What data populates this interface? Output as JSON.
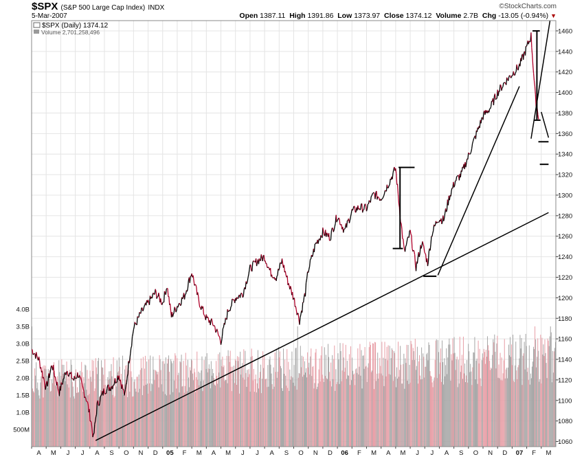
{
  "header": {
    "symbol": "$SPX",
    "name": "(S&P 500 Large Cap Index)",
    "exchange": "INDX",
    "date": "5-Mar-2007",
    "brand": "©StockCharts.com",
    "open_label": "Open",
    "open": "1387.11",
    "high_label": "High",
    "high": "1391.86",
    "low_label": "Low",
    "low": "1373.97",
    "close_label": "Close",
    "close": "1374.12",
    "volume_label": "Volume",
    "volume": "2.7B",
    "chg_label": "Chg",
    "chg": "-13.05 (-0.94%)",
    "chg_arrow": "▼"
  },
  "legend": {
    "price": "$SPX (Daily) 1374.12",
    "volume": "Volume 2,701,258,496"
  },
  "colors": {
    "up": "#000000",
    "down": "#b0002a",
    "volume_up": "#a8a8a8",
    "volume_down": "#e8a0a8",
    "grid": "#e4e4e4"
  },
  "chart_data": {
    "type": "line",
    "grid": true,
    "price_axis": {
      "position": "right",
      "range": [
        1055,
        1470
      ],
      "ticks": [
        1060,
        1080,
        1100,
        1120,
        1140,
        1160,
        1180,
        1200,
        1220,
        1240,
        1260,
        1280,
        1300,
        1320,
        1340,
        1360,
        1380,
        1400,
        1420,
        1440,
        1460
      ]
    },
    "volume_axis": {
      "position": "left",
      "range": [
        0,
        4.1
      ],
      "ticks": [
        {
          "v": 0.5,
          "label": "500M"
        },
        {
          "v": 1.0,
          "label": "1.0B"
        },
        {
          "v": 1.5,
          "label": "1.5B"
        },
        {
          "v": 2.0,
          "label": "2.0B"
        },
        {
          "v": 2.5,
          "label": "2.5B"
        },
        {
          "v": 3.0,
          "label": "3.0B"
        },
        {
          "v": 3.5,
          "label": "3.5B"
        },
        {
          "v": 4.0,
          "label": "4.0B"
        }
      ]
    },
    "x_axis": {
      "labels": [
        "A",
        "M",
        "J",
        "J",
        "A",
        "S",
        "O",
        "N",
        "D",
        "05",
        "F",
        "M",
        "A",
        "M",
        "J",
        "J",
        "A",
        "S",
        "O",
        "N",
        "D",
        "06",
        "F",
        "M",
        "A",
        "M",
        "J",
        "J",
        "A",
        "S",
        "O",
        "N",
        "D",
        "07",
        "F",
        "M"
      ],
      "bold": [
        "05",
        "06",
        "07"
      ]
    },
    "series": [
      {
        "points": [
          [
            0,
            1150
          ],
          [
            0.5,
            1140
          ],
          [
            1,
            1112
          ],
          [
            1.4,
            1135
          ],
          [
            1.9,
            1108
          ],
          [
            2.4,
            1130
          ],
          [
            2.9,
            1120
          ],
          [
            3.2,
            1126
          ],
          [
            3.5,
            1112
          ],
          [
            3.8,
            1100
          ],
          [
            4.1,
            1078
          ],
          [
            4.25,
            1063
          ],
          [
            4.5,
            1095
          ],
          [
            5,
            1110
          ],
          [
            5.5,
            1114
          ],
          [
            6,
            1125
          ],
          [
            6.4,
            1104
          ],
          [
            6.7,
            1140
          ],
          [
            7,
            1170
          ],
          [
            7.5,
            1185
          ],
          [
            8,
            1195
          ],
          [
            8.5,
            1205
          ],
          [
            9,
            1195
          ],
          [
            9.3,
            1212
          ],
          [
            9.6,
            1182
          ],
          [
            10,
            1192
          ],
          [
            10.5,
            1202
          ],
          [
            11,
            1225
          ],
          [
            11.5,
            1196
          ],
          [
            12,
            1180
          ],
          [
            12.5,
            1174
          ],
          [
            13,
            1158
          ],
          [
            13.5,
            1188
          ],
          [
            14,
            1200
          ],
          [
            14.5,
            1204
          ],
          [
            15,
            1228
          ],
          [
            15.5,
            1236
          ],
          [
            16,
            1240
          ],
          [
            16.4,
            1225
          ],
          [
            16.8,
            1220
          ],
          [
            17.2,
            1236
          ],
          [
            17.6,
            1216
          ],
          [
            18,
            1200
          ],
          [
            18.4,
            1178
          ],
          [
            18.8,
            1205
          ],
          [
            19,
            1227
          ],
          [
            19.5,
            1252
          ],
          [
            20,
            1264
          ],
          [
            20.5,
            1259
          ],
          [
            21,
            1280
          ],
          [
            21.5,
            1265
          ],
          [
            22,
            1284
          ],
          [
            22.5,
            1288
          ],
          [
            23,
            1287
          ],
          [
            23.5,
            1301
          ],
          [
            24,
            1297
          ],
          [
            24.5,
            1311
          ],
          [
            25,
            1326
          ],
          [
            25.3,
            1282
          ],
          [
            25.6,
            1244
          ],
          [
            26,
            1264
          ],
          [
            26.4,
            1230
          ],
          [
            26.8,
            1254
          ],
          [
            27.2,
            1234
          ],
          [
            27.5,
            1263
          ],
          [
            27.9,
            1277
          ],
          [
            28.3,
            1276
          ],
          [
            28.7,
            1299
          ],
          [
            29.1,
            1314
          ],
          [
            29.5,
            1320
          ],
          [
            30,
            1338
          ],
          [
            30.5,
            1358
          ],
          [
            31,
            1377
          ],
          [
            31.5,
            1385
          ],
          [
            32,
            1400
          ],
          [
            32.5,
            1410
          ],
          [
            33,
            1418
          ],
          [
            33.5,
            1426
          ],
          [
            33.9,
            1440
          ],
          [
            34.3,
            1455
          ],
          [
            34.6,
            1394
          ],
          [
            34.85,
            1374
          ]
        ]
      }
    ],
    "volume_bars": {
      "count": 740,
      "typical_range": [
        1.4,
        2.9
      ],
      "spikes": [
        0,
        375,
        710,
        732
      ]
    },
    "annotations": [
      {
        "type": "trendline",
        "from": [
          4.4,
          1061
        ],
        "to": [
          35.5,
          1283
        ]
      },
      {
        "type": "trendline",
        "from": [
          27.9,
          1222
        ],
        "to": [
          33.5,
          1406
        ]
      },
      {
        "type": "trendline",
        "from": [
          34.3,
          1355
        ],
        "to": [
          35.6,
          1470
        ]
      },
      {
        "type": "trendline",
        "from": [
          35.0,
          1381
        ],
        "to": [
          35.5,
          1356
        ]
      },
      {
        "type": "hline",
        "from": [
          25.2,
          1327
        ],
        "to": [
          26.3,
          1327
        ]
      },
      {
        "type": "vline",
        "from": [
          25.3,
          1327
        ],
        "to": [
          25.3,
          1248
        ]
      },
      {
        "type": "hline",
        "from": [
          24.8,
          1248
        ],
        "to": [
          25.5,
          1248
        ]
      },
      {
        "type": "hline",
        "from": [
          26.9,
          1221
        ],
        "to": [
          27.8,
          1221
        ]
      },
      {
        "type": "hline",
        "from": [
          34.4,
          1460
        ],
        "to": [
          34.9,
          1460
        ]
      },
      {
        "type": "vline",
        "from": [
          34.7,
          1460
        ],
        "to": [
          34.7,
          1373
        ]
      },
      {
        "type": "hline",
        "from": [
          34.5,
          1373
        ],
        "to": [
          34.95,
          1373
        ]
      },
      {
        "type": "hline",
        "from": [
          34.8,
          1352
        ],
        "to": [
          35.5,
          1352
        ]
      },
      {
        "type": "hline",
        "from": [
          34.9,
          1330
        ],
        "to": [
          35.5,
          1330
        ]
      }
    ]
  }
}
